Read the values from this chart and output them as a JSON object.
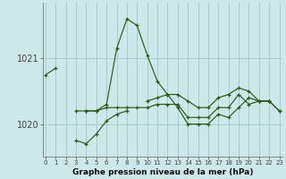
{
  "xlabel": "Graphe pression niveau de la mer (hPa)",
  "bg_color": "#cce8e8",
  "grid_color": "#aacccc",
  "line_color": "#2d5a1b",
  "marker": "+",
  "x_ticks": [
    0,
    1,
    2,
    3,
    4,
    5,
    6,
    7,
    8,
    9,
    10,
    11,
    12,
    13,
    14,
    15,
    16,
    17,
    18,
    19,
    20,
    21,
    22,
    23
  ],
  "yticks": [
    1020,
    1021
  ],
  "ylim": [
    1019.5,
    1021.85
  ],
  "xlim": [
    -0.3,
    23.3
  ],
  "series": [
    {
      "x": [
        0,
        1
      ],
      "y": [
        1020.75,
        1020.85
      ]
    },
    {
      "x": [
        3,
        4,
        5,
        6,
        7,
        8,
        9,
        10,
        11,
        12,
        13,
        14,
        15,
        16,
        17,
        18,
        19,
        20,
        21,
        22
      ],
      "y": [
        1020.2,
        1020.2,
        1020.2,
        1020.3,
        1021.15,
        1021.6,
        1021.5,
        1021.05,
        1020.65,
        1020.45,
        1020.25,
        1020.0,
        1020.0,
        1020.0,
        1020.15,
        1020.1,
        1020.25,
        1020.4,
        1020.35,
        1020.35
      ]
    },
    {
      "x": [
        3,
        4,
        5,
        6,
        7,
        8
      ],
      "y": [
        1019.75,
        1019.7,
        1019.85,
        1020.05,
        1020.15,
        1020.2
      ]
    },
    {
      "x": [
        4,
        5,
        6,
        7,
        8,
        9,
        10,
        11,
        12,
        13,
        14,
        15,
        16,
        17,
        18,
        19,
        20,
        21,
        22,
        23
      ],
      "y": [
        1020.2,
        1020.2,
        1020.25,
        1020.25,
        1020.25,
        1020.25,
        1020.25,
        1020.3,
        1020.3,
        1020.3,
        1020.1,
        1020.1,
        1020.1,
        1020.25,
        1020.25,
        1020.45,
        1020.3,
        1020.35,
        1020.35,
        1020.2
      ]
    },
    {
      "x": [
        10,
        11,
        12,
        13,
        14,
        15,
        16,
        17,
        18,
        19,
        20,
        21,
        22,
        23
      ],
      "y": [
        1020.35,
        1020.4,
        1020.45,
        1020.45,
        1020.35,
        1020.25,
        1020.25,
        1020.4,
        1020.45,
        1020.55,
        1020.5,
        1020.35,
        1020.35,
        1020.2
      ]
    }
  ]
}
